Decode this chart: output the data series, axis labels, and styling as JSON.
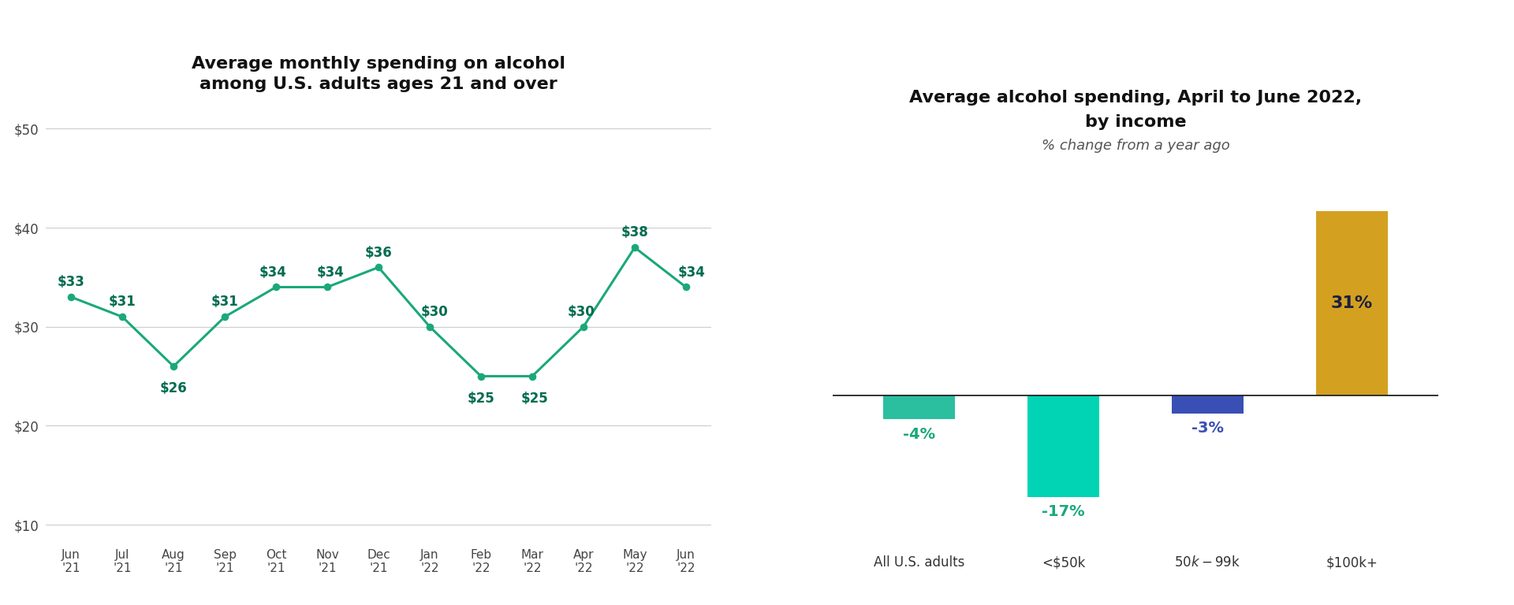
{
  "line_chart": {
    "title": "Average monthly spending on alcohol\namong U.S. adults ages 21 and over",
    "x_labels": [
      "Jun\n'21",
      "Jul\n'21",
      "Aug\n'21",
      "Sep\n'21",
      "Oct\n'21",
      "Nov\n'21",
      "Dec\n'21",
      "Jan\n'22",
      "Feb\n'22",
      "Mar\n'22",
      "Apr\n'22",
      "May\n'22",
      "Jun\n'22"
    ],
    "values": [
      33,
      31,
      26,
      31,
      34,
      34,
      36,
      30,
      25,
      25,
      30,
      38,
      34
    ],
    "line_color": "#1aa87a",
    "marker_color": "#1aa87a",
    "label_color": "#006b4f",
    "ylim": [
      8,
      52
    ],
    "yticks": [
      10,
      20,
      30,
      40,
      50
    ],
    "background": "#ffffff",
    "grid_color": "#cccccc"
  },
  "bar_chart": {
    "title": "Average alcohol spending, April to June 2022,\nby income",
    "subtitle": "% change from a year ago",
    "categories": [
      "All U.S. adults",
      "<$50k",
      "$50k-$99k",
      "$100k+"
    ],
    "values": [
      -4,
      -17,
      -3,
      31
    ],
    "bar_colors": [
      "#2bbfa0",
      "#00d4b4",
      "#3a4fb5",
      "#d4a020"
    ],
    "label_colors": [
      "#1aa87a",
      "#1aa87a",
      "#3a4fb5",
      "#1a2040"
    ],
    "ylim": [
      -25,
      38
    ],
    "background": "#ffffff",
    "grid_color": "#cccccc"
  }
}
